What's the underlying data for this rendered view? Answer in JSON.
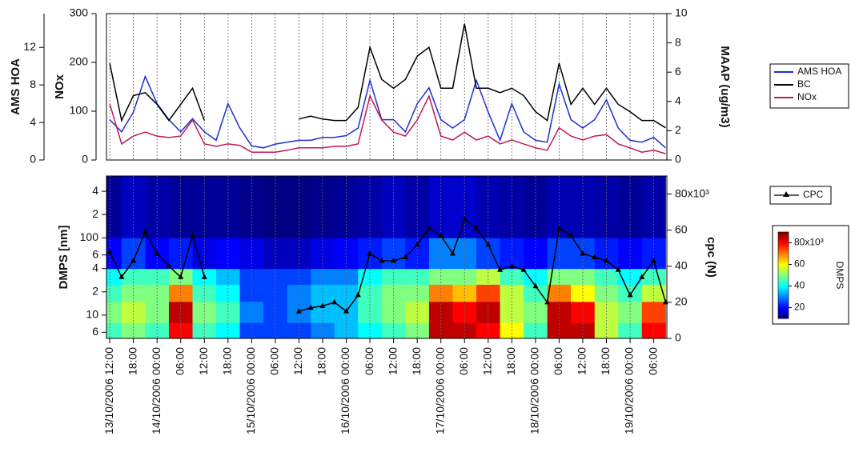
{
  "chart_data": [
    {
      "type": "line",
      "x": [
        "2006-10-13T12:00",
        "2006-10-13T15:00",
        "2006-10-13T18:00",
        "2006-10-13T21:00",
        "2006-10-14T00:00",
        "2006-10-14T03:00",
        "2006-10-14T06:00",
        "2006-10-14T09:00",
        "2006-10-14T12:00",
        "2006-10-14T15:00",
        "2006-10-14T18:00",
        "2006-10-14T21:00",
        "2006-10-15T00:00",
        "2006-10-15T03:00",
        "2006-10-15T06:00",
        "2006-10-15T09:00",
        "2006-10-15T12:00",
        "2006-10-15T15:00",
        "2006-10-15T18:00",
        "2006-10-15T21:00",
        "2006-10-16T00:00",
        "2006-10-16T03:00",
        "2006-10-16T06:00",
        "2006-10-16T09:00",
        "2006-10-16T12:00",
        "2006-10-16T15:00",
        "2006-10-16T18:00",
        "2006-10-16T21:00",
        "2006-10-17T00:00",
        "2006-10-17T03:00",
        "2006-10-17T06:00",
        "2006-10-17T09:00",
        "2006-10-17T12:00",
        "2006-10-17T15:00",
        "2006-10-17T18:00",
        "2006-10-17T21:00",
        "2006-10-18T00:00",
        "2006-10-18T03:00",
        "2006-10-18T06:00",
        "2006-10-18T09:00",
        "2006-10-18T12:00",
        "2006-10-18T15:00",
        "2006-10-18T18:00",
        "2006-10-18T21:00",
        "2006-10-19T00:00",
        "2006-10-19T03:00",
        "2006-10-19T06:00",
        "2006-10-19T09:00"
      ],
      "xlim": [
        "2006-10-13T11:10",
        "2006-10-19T09:20"
      ],
      "y_label": "AMS HOA",
      "ylim": [
        0,
        15.6
      ],
      "yticks": [
        0,
        4,
        8,
        12
      ],
      "y3_label": "NOx",
      "y3lim": [
        0,
        300
      ],
      "y3ticks": [
        0,
        100,
        200,
        300
      ],
      "y3_color": "#c0185a",
      "y2_label": "MAAP (ug/m3)",
      "y2lim": [
        0,
        10
      ],
      "y2ticks": [
        0,
        2,
        4,
        6,
        8,
        10
      ],
      "legend": "right",
      "series": [
        {
          "name": "AMS HOA",
          "color": "#1f2fd0",
          "axis": "y",
          "values": [
            4.3,
            3.0,
            5.1,
            8.9,
            6.0,
            4.3,
            3.0,
            4.4,
            3.0,
            2.1,
            6.0,
            3.4,
            1.5,
            1.3,
            1.7,
            1.9,
            2.1,
            2.1,
            2.4,
            2.4,
            2.6,
            3.4,
            8.5,
            4.3,
            4.3,
            3.0,
            6.0,
            7.7,
            4.3,
            3.4,
            4.3,
            8.5,
            5.1,
            2.1,
            6.0,
            3.0,
            2.1,
            1.9,
            8.1,
            4.3,
            3.4,
            4.3,
            6.4,
            3.4,
            2.1,
            1.9,
            2.4,
            1.3
          ]
        },
        {
          "name": "BC",
          "color": "#000000",
          "axis": "y2",
          "values": [
            6.6,
            2.7,
            4.4,
            4.6,
            3.8,
            2.7,
            3.8,
            4.9,
            2.7,
            null,
            null,
            null,
            null,
            null,
            null,
            null,
            2.8,
            3.0,
            2.8,
            2.7,
            2.7,
            3.6,
            7.7,
            5.5,
            4.9,
            5.5,
            7.1,
            7.7,
            4.9,
            4.9,
            9.3,
            4.9,
            4.9,
            4.6,
            4.9,
            4.4,
            3.3,
            2.7,
            6.6,
            3.8,
            4.9,
            3.8,
            4.9,
            3.8,
            3.3,
            2.7,
            2.7,
            2.2
          ]
        },
        {
          "name": "NOx",
          "color": "#c0185a",
          "axis": "y3",
          "values": [
            115,
            33,
            49,
            57,
            49,
            46,
            49,
            82,
            33,
            28,
            33,
            30,
            16,
            16,
            16,
            20,
            25,
            25,
            25,
            28,
            28,
            33,
            131,
            82,
            57,
            49,
            82,
            131,
            49,
            41,
            57,
            41,
            49,
            33,
            41,
            33,
            25,
            20,
            66,
            49,
            41,
            49,
            52,
            33,
            25,
            16,
            20,
            13
          ]
        }
      ]
    },
    {
      "type": "heatmap",
      "x": [
        "2006-10-13T12:00",
        "2006-10-13T18:00",
        "2006-10-14T00:00",
        "2006-10-14T06:00",
        "2006-10-14T12:00",
        "2006-10-14T18:00",
        "2006-10-15T00:00",
        "2006-10-15T06:00",
        "2006-10-15T12:00",
        "2006-10-15T18:00",
        "2006-10-16T00:00",
        "2006-10-16T06:00",
        "2006-10-16T12:00",
        "2006-10-16T18:00",
        "2006-10-17T00:00",
        "2006-10-17T06:00",
        "2006-10-17T12:00",
        "2006-10-17T18:00",
        "2006-10-18T00:00",
        "2006-10-18T06:00",
        "2006-10-18T12:00",
        "2006-10-18T18:00",
        "2006-10-19T00:00",
        "2006-10-19T06:00"
      ],
      "xlim": [
        "2006-10-13T11:10",
        "2006-10-19T09:20"
      ],
      "xticks": [
        {
          "value": "2006-10-13T12:00",
          "label": "13/10/2006 12:00"
        },
        {
          "value": "2006-10-13T18:00",
          "label": "18:00"
        },
        {
          "value": "2006-10-14T00:00",
          "label": "14/10/2006 00:00"
        },
        {
          "value": "2006-10-14T06:00",
          "label": "06:00"
        },
        {
          "value": "2006-10-14T12:00",
          "label": "12:00"
        },
        {
          "value": "2006-10-14T18:00",
          "label": "18:00"
        },
        {
          "value": "2006-10-15T00:00",
          "label": "15/10/2006 00:00"
        },
        {
          "value": "2006-10-15T06:00",
          "label": "06:00"
        },
        {
          "value": "2006-10-15T12:00",
          "label": "12:00"
        },
        {
          "value": "2006-10-15T18:00",
          "label": "18:00"
        },
        {
          "value": "2006-10-16T00:00",
          "label": "16/10/2006 00:00"
        },
        {
          "value": "2006-10-16T06:00",
          "label": "06:00"
        },
        {
          "value": "2006-10-16T12:00",
          "label": "12:00"
        },
        {
          "value": "2006-10-16T18:00",
          "label": "18:00"
        },
        {
          "value": "2006-10-17T00:00",
          "label": "17/10/2006 00:00"
        },
        {
          "value": "2006-10-17T06:00",
          "label": "06:00"
        },
        {
          "value": "2006-10-17T12:00",
          "label": "12:00"
        },
        {
          "value": "2006-10-17T18:00",
          "label": "18:00"
        },
        {
          "value": "2006-10-18T00:00",
          "label": "18/10/2006 00:00"
        },
        {
          "value": "2006-10-18T06:00",
          "label": "06:00"
        },
        {
          "value": "2006-10-18T12:00",
          "label": "12:00"
        },
        {
          "value": "2006-10-18T18:00",
          "label": "18:00"
        },
        {
          "value": "2006-10-19T00:00",
          "label": "19/10/2006 00:00"
        },
        {
          "value": "2006-10-19T06:00",
          "label": "06:00"
        }
      ],
      "y_label": "DMPS [nm]",
      "log_y": true,
      "ylim": [
        5,
        630
      ],
      "yticks": [
        6,
        10,
        {
          "value": 20,
          "label": "2"
        },
        {
          "value": 40,
          "label": "4"
        },
        {
          "value": 60,
          "label": "6"
        },
        100,
        {
          "value": 200,
          "label": "2"
        },
        {
          "value": 400,
          "label": "4"
        }
      ],
      "y_edges": [
        5,
        8,
        15,
        25,
        40,
        100,
        630
      ],
      "z": [
        [
          45,
          50,
          45,
          80,
          45,
          40,
          25,
          25,
          25,
          30,
          35,
          40,
          45,
          50,
          85,
          85,
          80,
          60,
          45,
          85,
          85,
          55,
          45,
          80
        ],
        [
          50,
          55,
          50,
          85,
          50,
          45,
          30,
          25,
          30,
          35,
          35,
          45,
          50,
          55,
          85,
          80,
          85,
          55,
          50,
          85,
          80,
          55,
          50,
          75
        ],
        [
          45,
          50,
          50,
          70,
          45,
          40,
          25,
          25,
          30,
          35,
          35,
          45,
          50,
          50,
          70,
          65,
          75,
          55,
          45,
          70,
          60,
          50,
          45,
          55
        ],
        [
          40,
          45,
          45,
          50,
          40,
          35,
          25,
          25,
          25,
          30,
          30,
          40,
          45,
          45,
          50,
          50,
          55,
          45,
          40,
          50,
          50,
          45,
          40,
          45
        ],
        [
          20,
          25,
          20,
          22,
          18,
          20,
          18,
          15,
          15,
          18,
          20,
          22,
          25,
          22,
          30,
          30,
          25,
          22,
          20,
          25,
          25,
          22,
          20,
          22
        ],
        [
          12,
          15,
          13,
          12,
          12,
          12,
          11,
          10,
          10,
          11,
          12,
          13,
          15,
          13,
          16,
          16,
          14,
          13,
          12,
          14,
          14,
          13,
          12,
          13
        ]
      ],
      "colorbar_title": "DMPS",
      "clim": [
        10,
        90
      ],
      "cticks": [
        20,
        40,
        60,
        {
          "value": 80,
          "label": "80x10³"
        }
      ],
      "y2_label": "cpc (N)",
      "y2lim": [
        0,
        90
      ],
      "y2ticks": [
        0,
        20,
        40,
        60,
        {
          "value": 80,
          "label": "80x10³"
        }
      ],
      "series": [
        {
          "name": "CPC",
          "color": "#000000",
          "axis": "y2",
          "marker": "triangle",
          "x": [
            "2006-10-13T12:00",
            "2006-10-13T15:00",
            "2006-10-13T18:00",
            "2006-10-13T21:00",
            "2006-10-14T00:00",
            "2006-10-14T03:00",
            "2006-10-14T06:00",
            "2006-10-14T09:00",
            "2006-10-14T12:00",
            "2006-10-14T15:00",
            "2006-10-14T18:00",
            "2006-10-14T21:00",
            "2006-10-15T00:00",
            "2006-10-15T03:00",
            "2006-10-15T06:00",
            "2006-10-15T09:00",
            "2006-10-15T12:00",
            "2006-10-15T15:00",
            "2006-10-15T18:00",
            "2006-10-15T21:00",
            "2006-10-16T00:00",
            "2006-10-16T03:00",
            "2006-10-16T06:00",
            "2006-10-16T09:00",
            "2006-10-16T12:00",
            "2006-10-16T15:00",
            "2006-10-16T18:00",
            "2006-10-16T21:00",
            "2006-10-17T00:00",
            "2006-10-17T03:00",
            "2006-10-17T06:00",
            "2006-10-17T09:00",
            "2006-10-17T12:00",
            "2006-10-17T15:00",
            "2006-10-17T18:00",
            "2006-10-17T21:00",
            "2006-10-18T00:00",
            "2006-10-18T03:00",
            "2006-10-18T06:00",
            "2006-10-18T09:00",
            "2006-10-18T12:00",
            "2006-10-18T15:00",
            "2006-10-18T18:00",
            "2006-10-18T21:00",
            "2006-10-19T00:00",
            "2006-10-19T03:00",
            "2006-10-19T06:00",
            "2006-10-19T09:00"
          ],
          "values": [
            48,
            34,
            43,
            59,
            47,
            40,
            34,
            57,
            34,
            null,
            null,
            null,
            null,
            null,
            null,
            null,
            15,
            17,
            18,
            20,
            15,
            24,
            47,
            43,
            43,
            45,
            52,
            61,
            57,
            47,
            66,
            61,
            52,
            38,
            40,
            38,
            29,
            20,
            61,
            57,
            47,
            45,
            43,
            38,
            24,
            34,
            43,
            20
          ]
        }
      ]
    }
  ]
}
